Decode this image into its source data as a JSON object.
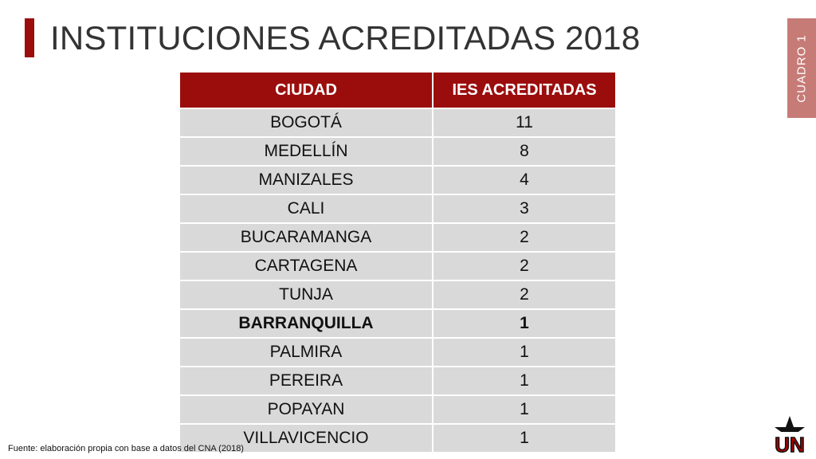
{
  "title": "INSTITUCIONES ACREDITADAS 2018",
  "side_tab": "CUADRO 1",
  "table": {
    "headers": [
      "CIUDAD",
      "IES ACREDITADAS"
    ],
    "rows": [
      {
        "ciudad": "BOGOTÁ",
        "ies": "11"
      },
      {
        "ciudad": "MEDELLÍN",
        "ies": "8"
      },
      {
        "ciudad": "MANIZALES",
        "ies": "4"
      },
      {
        "ciudad": "CALI",
        "ies": "3"
      },
      {
        "ciudad": "BUCARAMANGA",
        "ies": "2"
      },
      {
        "ciudad": "CARTAGENA",
        "ies": "2"
      },
      {
        "ciudad": "TUNJA",
        "ies": "2"
      },
      {
        "ciudad": "BARRANQUILLA",
        "ies": "1"
      },
      {
        "ciudad": "PALMIRA",
        "ies": "1"
      },
      {
        "ciudad": "PEREIRA",
        "ies": "1"
      },
      {
        "ciudad": "POPAYAN",
        "ies": "1"
      },
      {
        "ciudad": "VILLAVICENCIO",
        "ies": "1"
      }
    ]
  },
  "source": "Fuente: elaboración propia con base a datos del CNA (2018)",
  "logo": {
    "text": "UN",
    "icon": "un-logo-icon"
  },
  "colors": {
    "accent": "#9b0d0d",
    "side_tab": "#c77b76",
    "row_bg": "#d9d9d9"
  }
}
